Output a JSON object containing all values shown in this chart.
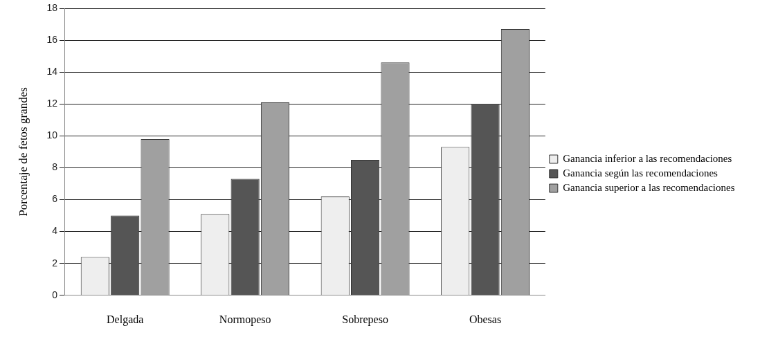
{
  "chart_data": {
    "type": "bar",
    "ylabel": "Porcentaje de fetos grandes",
    "categories": [
      "Delgada",
      "Normopeso",
      "Sobrepeso",
      "Obesas"
    ],
    "series": [
      {
        "name": "Ganancia inferior a las recomendaciones",
        "color": "#eeeeee",
        "values": [
          2.4,
          5.1,
          6.2,
          9.3
        ]
      },
      {
        "name": "Ganancia según las recomendaciones",
        "color": "#555555",
        "values": [
          5.0,
          7.3,
          8.5,
          12.0
        ]
      },
      {
        "name": "Ganancia superior a las recomendaciones",
        "color": "#a0a0a0",
        "values": [
          9.8,
          12.1,
          14.6,
          16.7
        ]
      }
    ],
    "ylim": [
      0,
      18
    ],
    "yticks": [
      0,
      2,
      4,
      6,
      8,
      10,
      12,
      14,
      16,
      18
    ],
    "grid": "y",
    "legend": "right"
  }
}
